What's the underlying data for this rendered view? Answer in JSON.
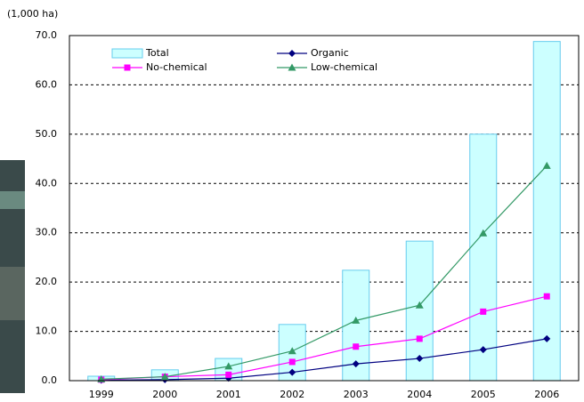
{
  "chart_data": {
    "type": "bar-line",
    "title": "(1,000 ha)",
    "categories": [
      "1999",
      "2000",
      "2001",
      "2002",
      "2003",
      "2004",
      "2005",
      "2006"
    ],
    "series": [
      {
        "name": "Total",
        "type": "bar",
        "color": "#ccffff",
        "edge": "#66ccee",
        "values": [
          0.9,
          2.2,
          4.5,
          11.4,
          22.4,
          28.3,
          50.0,
          68.8
        ]
      },
      {
        "name": "Organic",
        "type": "line",
        "marker": "diamond",
        "color": "#000080",
        "values": [
          0.1,
          0.2,
          0.5,
          1.7,
          3.4,
          4.5,
          6.3,
          8.5
        ]
      },
      {
        "name": "No-chemical",
        "type": "line",
        "marker": "square",
        "color": "#ff00ff",
        "values": [
          0.2,
          0.8,
          1.2,
          3.8,
          6.9,
          8.5,
          14.0,
          17.1
        ]
      },
      {
        "name": "Low-chemical",
        "type": "line",
        "marker": "triangle",
        "color": "#339966",
        "values": [
          0.3,
          0.8,
          2.9,
          6.0,
          12.2,
          15.3,
          29.9,
          43.6
        ]
      }
    ],
    "ylim": [
      0,
      70
    ],
    "yticks": [
      {
        "value": 0,
        "label": "0.0"
      },
      {
        "value": 10,
        "label": "10.0"
      },
      {
        "value": 20,
        "label": "20.0"
      },
      {
        "value": 30,
        "label": "30.0"
      },
      {
        "value": 40,
        "label": "40.0"
      },
      {
        "value": 50,
        "label": "50.0"
      },
      {
        "value": 60,
        "label": "60.0"
      },
      {
        "value": 70,
        "label": "70.0"
      }
    ],
    "grid": true,
    "legend": "upper left"
  }
}
